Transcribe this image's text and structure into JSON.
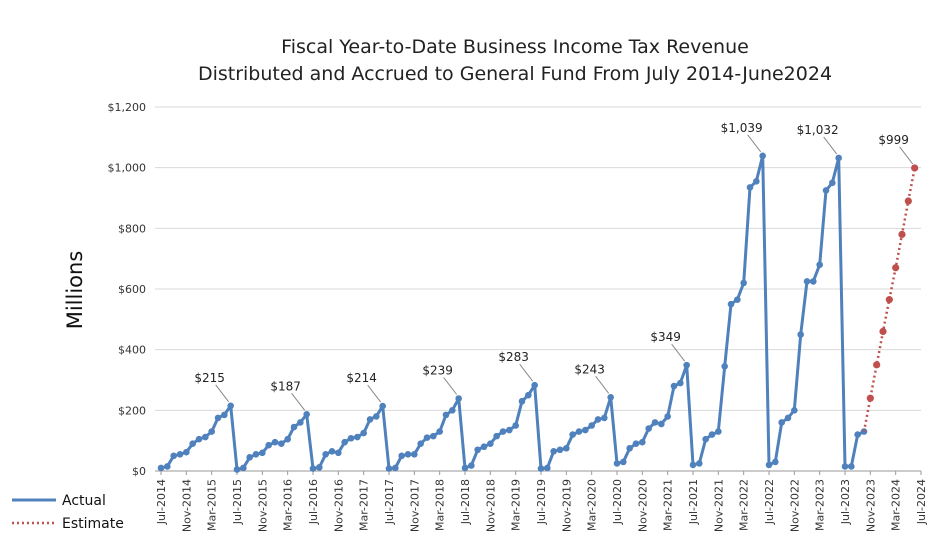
{
  "chart_data": {
    "type": "line",
    "title_lines": [
      "Fiscal Year-to-Date Business Income Tax Revenue",
      "Distributed and Accrued to General Fund From July 2014-June2024"
    ],
    "xlabel": "",
    "ylabel": "Millions",
    "ylim": [
      0,
      1200
    ],
    "yticks": [
      0,
      200,
      400,
      600,
      800,
      1000,
      1200
    ],
    "ytick_labels": [
      "$0",
      "$200",
      "$400",
      "$600",
      "$800",
      "$1,000",
      "$1,200"
    ],
    "x_start_month": "Jul-2014",
    "x_tick_labels": [
      "Jul-2014",
      "Nov-2014",
      "Mar-2015",
      "Jul-2015",
      "Nov-2015",
      "Mar-2016",
      "Jul-2016",
      "Nov-2016",
      "Mar-2017",
      "Jul-2017",
      "Nov-2017",
      "Mar-2018",
      "Jul-2018",
      "Nov-2018",
      "Mar-2019",
      "Jul-2019",
      "Nov-2019",
      "Mar-2020",
      "Jul-2020",
      "Nov-2020",
      "Mar-2021",
      "Jul-2021",
      "Nov-2021",
      "Mar-2022",
      "Jul-2022",
      "Nov-2022",
      "Mar-2023",
      "Jul-2023",
      "Nov-2023",
      "Mar-2024",
      "Jul-2024"
    ],
    "grid": true,
    "legend_position": "bottom-left",
    "series": [
      {
        "name": "Actual",
        "color": "#4f81bd",
        "style": "solid",
        "values": [
          10,
          15,
          50,
          55,
          62,
          90,
          105,
          112,
          130,
          175,
          185,
          215,
          5,
          10,
          45,
          55,
          60,
          85,
          95,
          90,
          105,
          145,
          160,
          187,
          8,
          12,
          55,
          65,
          60,
          95,
          108,
          112,
          125,
          170,
          180,
          214,
          8,
          10,
          50,
          55,
          55,
          90,
          110,
          115,
          130,
          185,
          200,
          239,
          10,
          18,
          70,
          80,
          90,
          115,
          130,
          135,
          150,
          230,
          250,
          283,
          8,
          10,
          65,
          70,
          75,
          120,
          130,
          135,
          150,
          170,
          175,
          243,
          25,
          30,
          75,
          90,
          95,
          140,
          160,
          155,
          180,
          280,
          290,
          349,
          20,
          25,
          105,
          120,
          130,
          345,
          550,
          565,
          620,
          935,
          955,
          1039,
          20,
          30,
          160,
          175,
          200,
          450,
          625,
          625,
          680,
          925,
          950,
          1032,
          15,
          15,
          120,
          130
        ]
      },
      {
        "name": "Estimate",
        "color": "#c0504d",
        "style": "dotted",
        "start_index": 111,
        "values": [
          130,
          240,
          350,
          460,
          565,
          670,
          780,
          890,
          999
        ]
      }
    ],
    "annotations": [
      {
        "label": "$215",
        "index": 11,
        "value": 215
      },
      {
        "label": "$187",
        "index": 23,
        "value": 187
      },
      {
        "label": "$214",
        "index": 35,
        "value": 214
      },
      {
        "label": "$239",
        "index": 47,
        "value": 239
      },
      {
        "label": "$283",
        "index": 59,
        "value": 283
      },
      {
        "label": "$243",
        "index": 71,
        "value": 243
      },
      {
        "label": "$349",
        "index": 83,
        "value": 349
      },
      {
        "label": "$1,039",
        "index": 95,
        "value": 1039
      },
      {
        "label": "$1,032",
        "index": 107,
        "value": 1032
      },
      {
        "label": "$999",
        "index": 119,
        "value": 999
      }
    ]
  }
}
